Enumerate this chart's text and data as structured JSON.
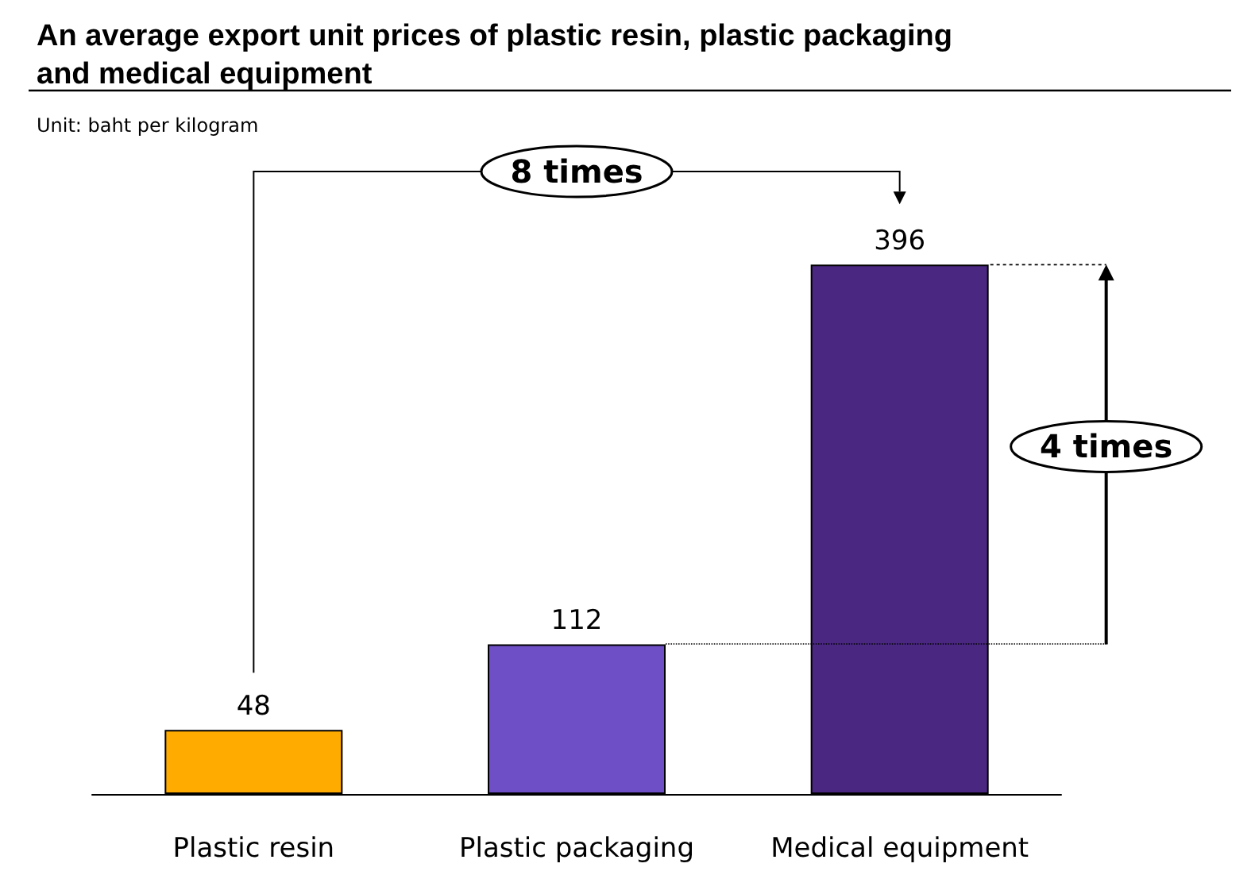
{
  "chart_data": {
    "type": "bar",
    "title": "An average export unit prices of plastic resin, plastic packaging and medical equipment",
    "subtitle": "Unit: baht per kilogram",
    "categories": [
      "Plastic resin",
      "Plastic packaging",
      "Medical equipment"
    ],
    "values": [
      48,
      112,
      396
    ],
    "colors": [
      "#ffab00",
      "#6e4fc6",
      "#4a2882"
    ],
    "data_labels": true,
    "ref_lines": [
      {
        "axis": "y",
        "value": 112,
        "line_style": "dotted"
      }
    ],
    "annotations": [
      "8 times",
      "4 times"
    ]
  }
}
